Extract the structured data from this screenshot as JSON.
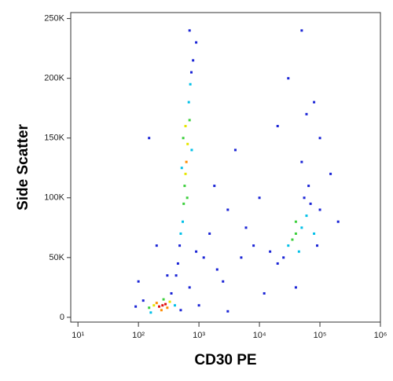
{
  "chart_data": {
    "type": "scatter",
    "x_label": "CD30 PE",
    "y_label": "Side Scatter",
    "xscale": "log",
    "xlim": [
      7.6,
      1000000
    ],
    "xticks": [
      {
        "value": 10,
        "label": "10¹"
      },
      {
        "value": 100,
        "label": "10²"
      },
      {
        "value": 1000,
        "label": "10³"
      },
      {
        "value": 10000,
        "label": "10⁴"
      },
      {
        "value": 100000,
        "label": "10⁵"
      },
      {
        "value": 1000000,
        "label": "10⁶"
      }
    ],
    "ylim": [
      -4000,
      255000
    ],
    "yticks": [
      0,
      {
        "value": 50000,
        "label": "50K"
      },
      {
        "value": 100000,
        "label": "100K"
      },
      {
        "value": 150000,
        "label": "150K"
      },
      {
        "value": 200000,
        "label": "200K"
      },
      {
        "value": 250000,
        "label": "250K"
      }
    ],
    "x": [
      2000,
      5000,
      8000,
      1500,
      3000,
      10000,
      4000,
      20000,
      50000,
      80000,
      30000,
      1200,
      2500,
      700,
      300,
      200,
      150,
      100,
      1000,
      3000,
      50000,
      150000,
      200000,
      12000,
      40000,
      6000,
      1800,
      900,
      60000,
      100000,
      120,
      500,
      90,
      350,
      160,
      400,
      150,
      260,
      180,
      330,
      200,
      300,
      240,
      250,
      220,
      280,
      480,
      450,
      420,
      900,
      700,
      800,
      750,
      720,
      500,
      680,
      540,
      760,
      520,
      560,
      700,
      580,
      640,
      550,
      650,
      600,
      600,
      620,
      100000,
      65000,
      90000,
      15000,
      55000,
      20000,
      25000,
      70000,
      80000,
      45000,
      30000,
      60000,
      50000,
      40000,
      35000,
      40000
    ],
    "y": [
      40000,
      50000,
      60000,
      70000,
      90000,
      100000,
      140000,
      160000,
      130000,
      180000,
      200000,
      50000,
      30000,
      25000,
      35000,
      60000,
      150000,
      30000,
      10000,
      5000,
      240000,
      120000,
      80000,
      20000,
      25000,
      75000,
      110000,
      55000,
      170000,
      150000,
      14000,
      6000,
      9000,
      20000,
      4000,
      10000,
      8000,
      15000,
      10000,
      13000,
      12000,
      8000,
      6000,
      10000,
      9000,
      11000,
      60000,
      45000,
      35000,
      230000,
      240000,
      215000,
      205000,
      195000,
      70000,
      180000,
      80000,
      140000,
      125000,
      95000,
      165000,
      110000,
      100000,
      150000,
      145000,
      120000,
      160000,
      130000,
      90000,
      110000,
      60000,
      55000,
      100000,
      45000,
      50000,
      95000,
      70000,
      55000,
      60000,
      85000,
      75000,
      80000,
      65000,
      70000
    ],
    "colors": [
      "#1a24d6",
      "#1a24d6",
      "#1a24d6",
      "#1a24d6",
      "#1a24d6",
      "#1a24d6",
      "#1a24d6",
      "#1a24d6",
      "#1a24d6",
      "#1a24d6",
      "#1a24d6",
      "#1a24d6",
      "#1a24d6",
      "#1a24d6",
      "#1a24d6",
      "#1a24d6",
      "#1a24d6",
      "#1a24d6",
      "#1a24d6",
      "#1a24d6",
      "#1a24d6",
      "#1a24d6",
      "#1a24d6",
      "#1a24d6",
      "#1a24d6",
      "#1a24d6",
      "#1a24d6",
      "#1a24d6",
      "#1a24d6",
      "#1a24d6",
      "#1a24d6",
      "#1a24d6",
      "#1a24d6",
      "#1a24d6",
      "#00c0e8",
      "#00c0e8",
      "#3ccf3c",
      "#3ccf3c",
      "#e6e600",
      "#e6e600",
      "#ff8c00",
      "#ff8c00",
      "#ff8c00",
      "#e01010",
      "#e01010",
      "#e01010",
      "#1a24d6",
      "#1a24d6",
      "#1a24d6",
      "#1a24d6",
      "#1a24d6",
      "#1a24d6",
      "#1a24d6",
      "#00c0e8",
      "#00c0e8",
      "#00c0e8",
      "#00c0e8",
      "#00c0e8",
      "#00c0e8",
      "#3ccf3c",
      "#3ccf3c",
      "#3ccf3c",
      "#3ccf3c",
      "#3ccf3c",
      "#e6e600",
      "#e6e600",
      "#e6e600",
      "#ff8c00",
      "#1a24d6",
      "#1a24d6",
      "#1a24d6",
      "#1a24d6",
      "#1a24d6",
      "#1a24d6",
      "#1a24d6",
      "#1a24d6",
      "#00c0e8",
      "#00c0e8",
      "#00c0e8",
      "#00c0e8",
      "#00c0e8",
      "#3ccf3c",
      "#3ccf3c",
      "#3ccf3c"
    ]
  }
}
